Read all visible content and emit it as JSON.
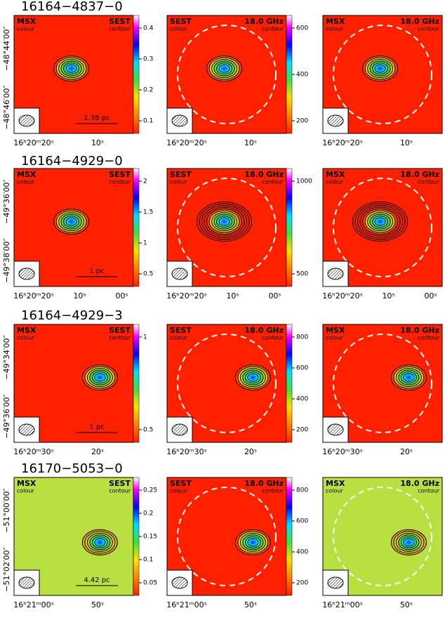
{
  "rows": [
    {
      "title": "16164−4837−0",
      "y_labels": [
        "−48°44′00″",
        "−48°46′00″"
      ],
      "x_labels": [
        "16ʰ20ᵐ20ˢ",
        "10ˢ"
      ],
      "scale_bar": "1.38 pc",
      "panels": [
        {
          "colour": "MSX",
          "colour_note": "colour",
          "contour": "SEST",
          "contour_note": "contour",
          "colorbar_ticks": [
            0.1,
            0.2,
            0.3,
            0.4
          ]
        },
        {
          "colour": "SEST",
          "colour_note": "colour",
          "contour": "18.0 GHz",
          "contour_note": "contour",
          "colorbar_ticks": [
            200,
            400,
            600
          ]
        },
        {
          "colour": "MSX",
          "colour_note": "colour",
          "contour": "18.0 GHz",
          "contour_note": "contour",
          "colorbar_ticks": []
        }
      ]
    },
    {
      "title": "16164−4929−0",
      "y_labels": [
        "−49°36′00″",
        "−49°38′00″"
      ],
      "x_labels": [
        "16ʰ20ᵐ20ˢ",
        "10ˢ",
        "00ˢ"
      ],
      "scale_bar": "1 pc",
      "panels": [
        {
          "colour": "MSX",
          "colour_note": "colour",
          "contour": "SEST",
          "contour_note": "contour",
          "colorbar_ticks": [
            0.5,
            1,
            1.5,
            2
          ]
        },
        {
          "colour": "SEST",
          "colour_note": "colour",
          "contour": "18.0 GHz",
          "contour_note": "contour",
          "colorbar_ticks": [
            500,
            1000
          ]
        },
        {
          "colour": "MSX",
          "colour_note": "colour",
          "contour": "18.0 GHz",
          "contour_note": "contour",
          "colorbar_ticks": []
        }
      ]
    },
    {
      "title": "16164−4929−3",
      "y_labels": [
        "−49°34′00″",
        "−49°36′00″"
      ],
      "x_labels": [
        "16ʰ20ᵐ30ˢ",
        "20ˢ"
      ],
      "scale_bar": "1 pc",
      "panels": [
        {
          "colour": "MSX",
          "colour_note": "colour",
          "contour": "SEST",
          "contour_note": "contour",
          "colorbar_ticks": [
            0.5,
            1
          ]
        },
        {
          "colour": "SEST",
          "colour_note": "colour",
          "contour": "18.0 GHz",
          "contour_note": "contour",
          "colorbar_ticks": [
            200,
            400,
            600,
            800
          ]
        },
        {
          "colour": "MSX",
          "colour_note": "colour",
          "contour": "18.0 GHz",
          "contour_note": "contour",
          "colorbar_ticks": []
        }
      ]
    },
    {
      "title": "16170−5053−0",
      "y_labels": [
        "−51°00′00″",
        "−51°02′00″"
      ],
      "x_labels": [
        "16ʰ21ᵐ00ˢ",
        "50ˢ"
      ],
      "scale_bar": "4.42 pc",
      "panels": [
        {
          "colour": "MSX",
          "colour_note": "colour",
          "contour": "SEST",
          "contour_note": "contour",
          "colorbar_ticks": [
            0.05,
            0.1,
            0.15,
            0.2,
            0.25
          ]
        },
        {
          "colour": "SEST",
          "colour_note": "colour",
          "contour": "18.0 GHz",
          "contour_note": "contour",
          "colorbar_ticks": [
            200,
            400,
            600,
            800
          ]
        },
        {
          "colour": "MSX",
          "colour_note": "colour",
          "contour": "18.0 GHz",
          "contour_note": "contour",
          "colorbar_ticks": []
        }
      ]
    }
  ]
}
